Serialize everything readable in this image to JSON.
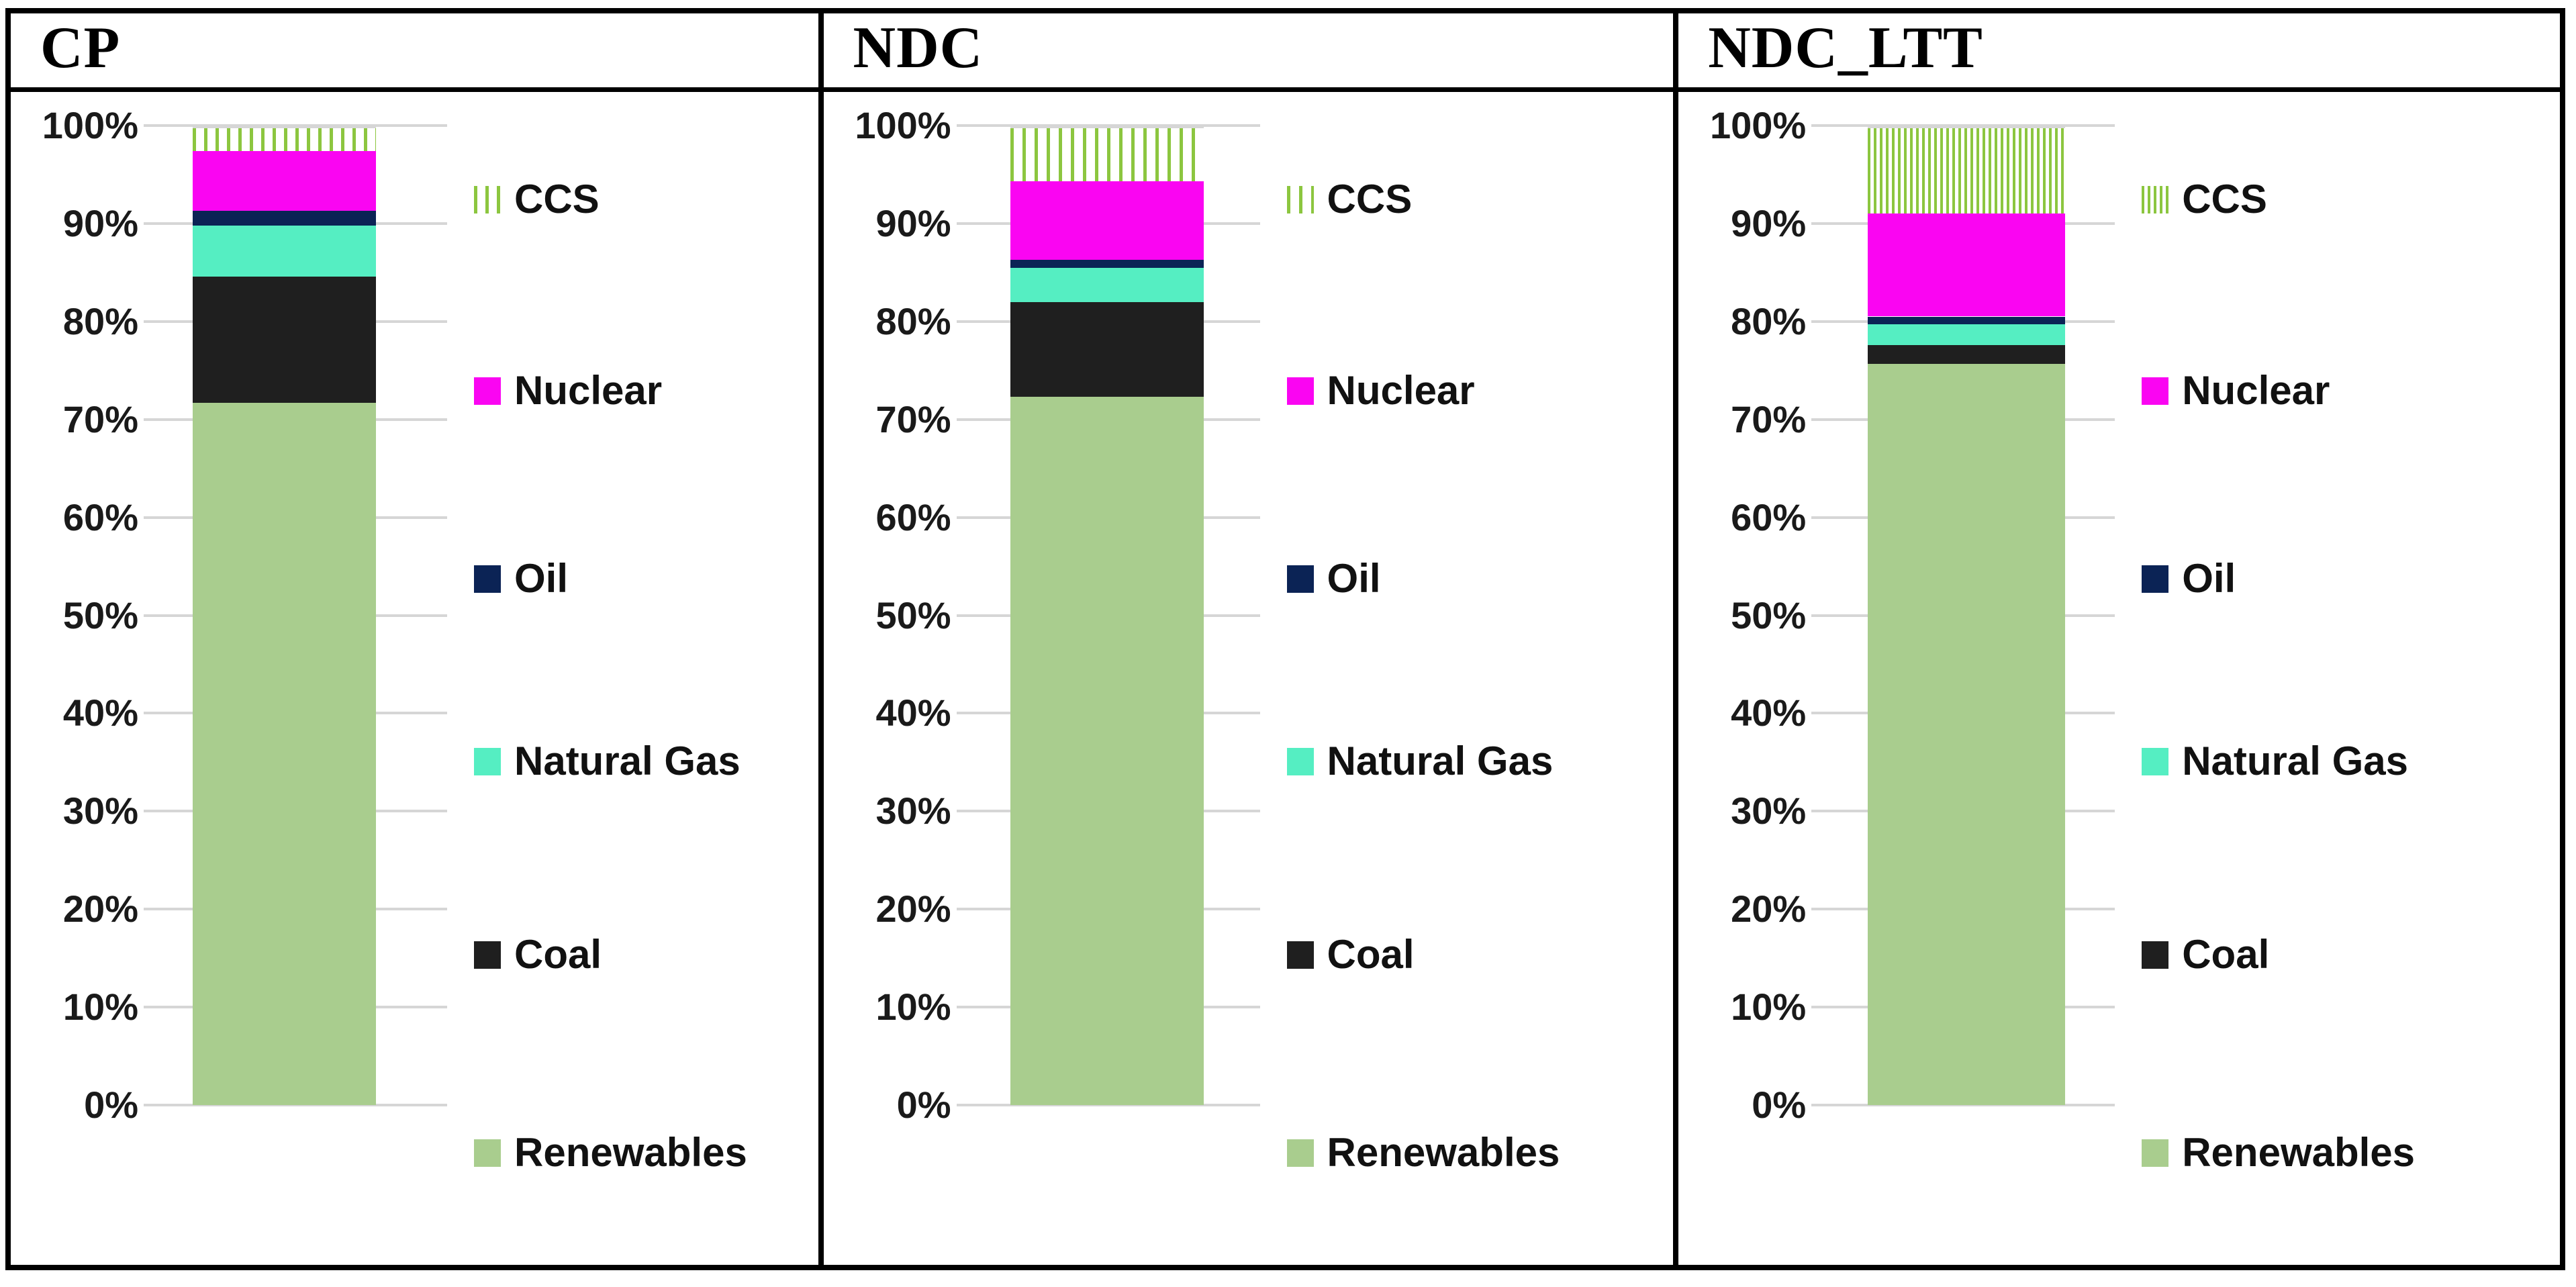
{
  "page": {
    "background": "#FFFFFF",
    "frame_border_color": "#000000",
    "gridline_color": "#D6D6D6"
  },
  "panels": [
    {
      "title": "CP"
    },
    {
      "title": "NDC"
    },
    {
      "title": "NDC_LTT"
    }
  ],
  "y_axis": {
    "tick_labels": [
      "100%",
      "90%",
      "80%",
      "70%",
      "60%",
      "50%",
      "40%",
      "30%",
      "20%",
      "10%",
      "0%"
    ],
    "min": 0,
    "max": 100,
    "step": 10,
    "unit": "%"
  },
  "legend": {
    "items": [
      {
        "label": "CCS",
        "swatch": "hatch",
        "color": "#8CC63F"
      },
      {
        "label": "Nuclear",
        "swatch": "solid",
        "color": "#FA05F2"
      },
      {
        "label": "Oil",
        "swatch": "solid",
        "color": "#0B2355"
      },
      {
        "label": "Natural Gas",
        "swatch": "solid",
        "color": "#55EEC2"
      },
      {
        "label": "Coal",
        "swatch": "solid",
        "color": "#1F1F1F"
      },
      {
        "label": "Renewables",
        "swatch": "solid",
        "color": "#A9CD8E"
      }
    ]
  },
  "chart_data": [
    {
      "type": "bar",
      "stacked": true,
      "title": "CP",
      "xlabel": "",
      "ylabel": "",
      "ylim": [
        0,
        100
      ],
      "grid": true,
      "legend_position": "right",
      "stack_order": "bottom-to-top",
      "series": [
        {
          "name": "Renewables",
          "value": 71.7
        },
        {
          "name": "Coal",
          "value": 12.9
        },
        {
          "name": "Natural Gas",
          "value": 5.2
        },
        {
          "name": "Oil",
          "value": 1.5
        },
        {
          "name": "Nuclear",
          "value": 6.1
        },
        {
          "name": "CCS",
          "value": 2.6
        }
      ]
    },
    {
      "type": "bar",
      "stacked": true,
      "title": "NDC",
      "xlabel": "",
      "ylabel": "",
      "ylim": [
        0,
        100
      ],
      "grid": true,
      "legend_position": "right",
      "stack_order": "bottom-to-top",
      "series": [
        {
          "name": "Renewables",
          "value": 72.3
        },
        {
          "name": "Coal",
          "value": 9.7
        },
        {
          "name": "Natural Gas",
          "value": 3.5
        },
        {
          "name": "Oil",
          "value": 0.8
        },
        {
          "name": "Nuclear",
          "value": 8.0
        },
        {
          "name": "CCS",
          "value": 5.7
        }
      ]
    },
    {
      "type": "bar",
      "stacked": true,
      "title": "NDC_LTT",
      "xlabel": "",
      "ylabel": "",
      "ylim": [
        0,
        100
      ],
      "grid": true,
      "legend_position": "right",
      "stack_order": "bottom-to-top",
      "series": [
        {
          "name": "Renewables",
          "value": 75.7
        },
        {
          "name": "Coal",
          "value": 1.9
        },
        {
          "name": "Natural Gas",
          "value": 2.1
        },
        {
          "name": "Oil",
          "value": 0.8
        },
        {
          "name": "Nuclear",
          "value": 10.5
        },
        {
          "name": "CCS",
          "value": 9.0
        }
      ]
    }
  ]
}
